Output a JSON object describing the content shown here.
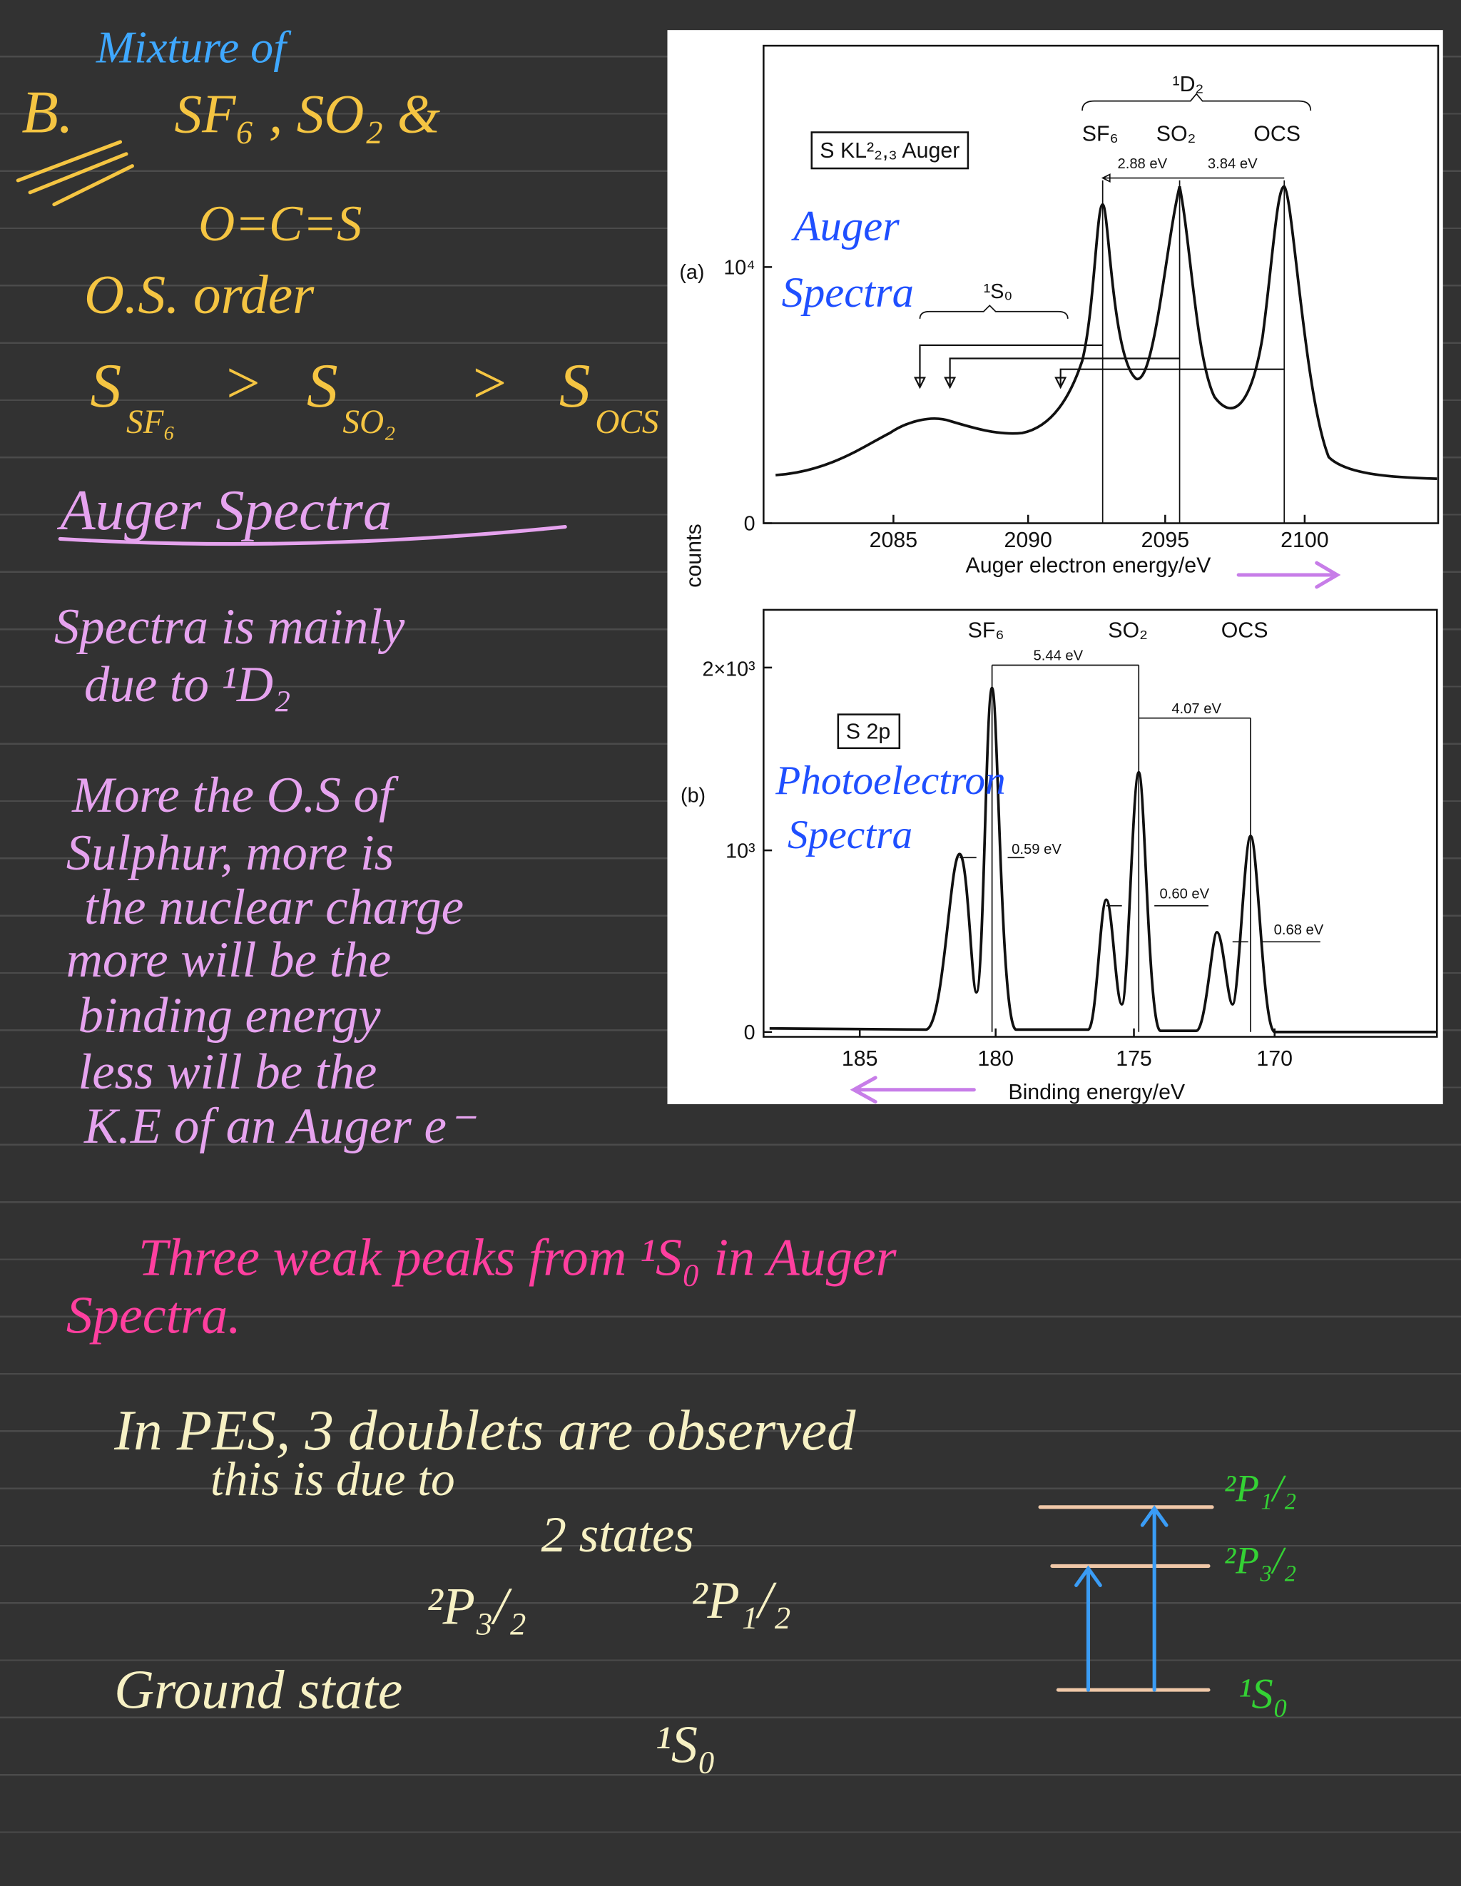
{
  "notes": {
    "title_prefix": "Mixture of",
    "label": "B.",
    "compounds": "SF₆ , SO₂ &",
    "ocs_structure": "O=C=S",
    "os_heading": "O.S. order",
    "os_order": {
      "symbols": [
        "S",
        "S",
        "S"
      ],
      "subs": [
        "SF₆",
        "SO₂",
        "OCS"
      ],
      "relations": [
        ">",
        ">"
      ]
    },
    "auger_heading": "Auger Spectra",
    "auger_notes": [
      "Spectra is mainly",
      "due to ¹D₂",
      "More the O.S of",
      "Sulphur, more is",
      "the nuclear charge",
      "more will be the",
      "binding energy",
      "less will be the",
      "K.E of an Auger e⁻"
    ],
    "weak_peaks": [
      "Three weak peaks from ¹S₀ in Auger",
      "Spectra."
    ],
    "pes_notes": {
      "line1": "In PES, 3 doublets are observed",
      "line2": "this is due to",
      "line3": "2 states",
      "state_a": "²P₃/₂",
      "state_b": "²P₁/₂",
      "ground": "Ground state",
      "ground_term": "¹S₀"
    },
    "energy_levels": [
      "²P₁/₂",
      "²P₃/₂",
      "¹S₀"
    ],
    "figure_annotations": [
      "Auger",
      "Spectra",
      "Photoelectron",
      "Spectra"
    ]
  },
  "figure": {
    "y_label": "counts",
    "panel_a": {
      "tag": "(a)",
      "y_ticks": [
        "10⁴",
        "0"
      ],
      "x_ticks": [
        "2085",
        "2090",
        "2095",
        "2100"
      ],
      "x_label": "Auger electron energy/eV",
      "box_label": "S KL²₂,₃ Auger",
      "group_label": "¹D₂",
      "peaks": [
        "SF₆",
        "SO₂",
        "OCS"
      ],
      "gaps": [
        "2.88 eV",
        "3.84 eV"
      ],
      "weak_label": "¹S₀"
    },
    "panel_b": {
      "tag": "(b)",
      "y_ticks": [
        "2×10³",
        "10³",
        "0"
      ],
      "x_ticks": [
        "185",
        "180",
        "175",
        "170"
      ],
      "x_label": "Binding energy/eV",
      "box_label": "S 2p",
      "peaks": [
        "SF₆",
        "SO₂",
        "OCS"
      ],
      "gaps": [
        "5.44 eV",
        "4.07 eV"
      ],
      "splittings": [
        "0.59 eV",
        "0.60 eV",
        "0.68 eV"
      ]
    }
  }
}
